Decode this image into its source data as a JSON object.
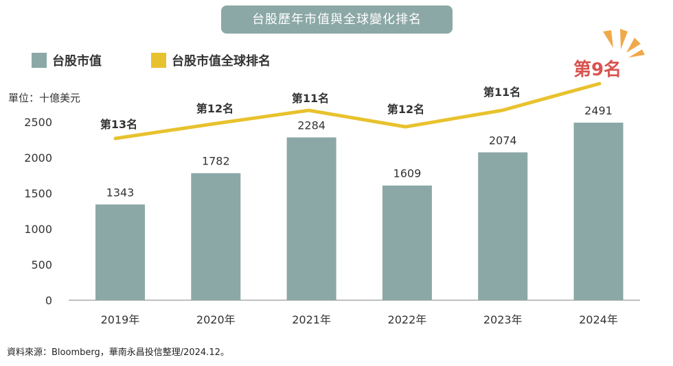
{
  "title": "台股歷年市值與全球變化排名",
  "unit_label": "單位：十億美元",
  "source": "資料來源：Bloomberg，華南永昌投信整理/2024.12。",
  "colors": {
    "bar": "#8ba8a6",
    "line": "#e8c22e",
    "highlight": "#d9534f",
    "burst": "#f0a94a"
  },
  "chart_data": {
    "type": "bar",
    "categories": [
      "2019年",
      "2020年",
      "2021年",
      "2022年",
      "2023年",
      "2024年"
    ],
    "series": [
      {
        "name": "台股市值",
        "type": "bar",
        "values": [
          1343,
          1782,
          2284,
          1609,
          2074,
          2491
        ]
      },
      {
        "name": "台股市值全球排名",
        "type": "line",
        "values": [
          13,
          12,
          11,
          12,
          11,
          9
        ],
        "labels": [
          "第13名",
          "第12名",
          "第11名",
          "第12名",
          "第11名",
          "第9名"
        ]
      }
    ],
    "yticks": [
      0,
      500,
      1000,
      1500,
      2000,
      2500
    ],
    "ylim": [
      0,
      2500
    ],
    "grid": false,
    "legend_position": "top-left",
    "highlight_label": "第9名"
  }
}
